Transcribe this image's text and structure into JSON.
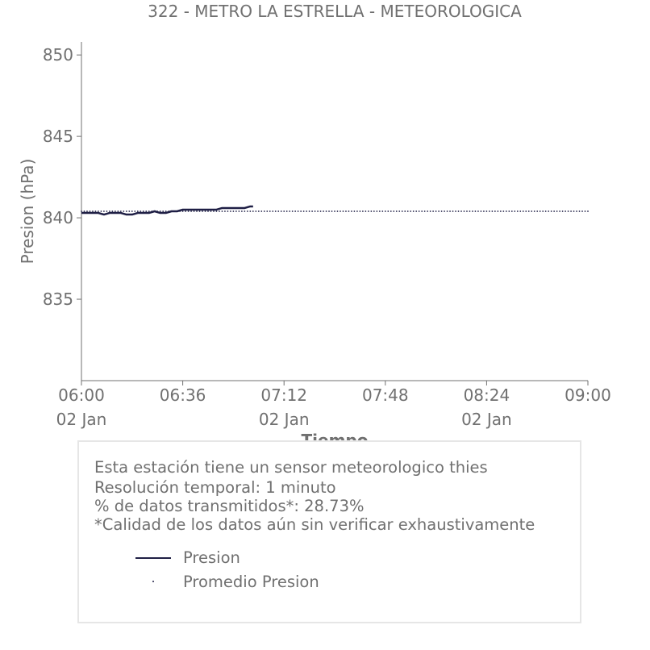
{
  "chart_data": {
    "type": "line",
    "title": "322 - METRO LA ESTRELLA - METEOROLOGICA",
    "xlabel": "Tiempo",
    "ylabel": "Presion (hPa)",
    "ylim": [
      830,
      850.8
    ],
    "xlim": [
      "06:00",
      "09:00"
    ],
    "yticks": [
      835,
      840,
      845,
      850
    ],
    "xticks": [
      {
        "time": "06:00",
        "date": "02 Jan"
      },
      {
        "time": "06:36",
        "date": ""
      },
      {
        "time": "07:12",
        "date": "02 Jan"
      },
      {
        "time": "07:48",
        "date": ""
      },
      {
        "time": "08:24",
        "date": "02 Jan"
      },
      {
        "time": "09:00",
        "date": ""
      }
    ],
    "grid": false,
    "series": [
      {
        "name": "Presion",
        "color": "#1f1f45",
        "style": "solid",
        "x": [
          "06:00",
          "06:02",
          "06:04",
          "06:06",
          "06:08",
          "06:10",
          "06:12",
          "06:14",
          "06:16",
          "06:18",
          "06:20",
          "06:22",
          "06:24",
          "06:26",
          "06:28",
          "06:30",
          "06:32",
          "06:34",
          "06:36",
          "06:38",
          "06:40",
          "06:42",
          "06:44",
          "06:46",
          "06:48",
          "06:50",
          "06:52",
          "06:54",
          "06:56",
          "06:58",
          "07:00",
          "07:01"
        ],
        "values": [
          840.3,
          840.3,
          840.3,
          840.3,
          840.2,
          840.3,
          840.3,
          840.3,
          840.2,
          840.2,
          840.3,
          840.3,
          840.3,
          840.4,
          840.3,
          840.3,
          840.4,
          840.4,
          840.5,
          840.5,
          840.5,
          840.5,
          840.5,
          840.5,
          840.5,
          840.6,
          840.6,
          840.6,
          840.6,
          840.6,
          840.7,
          840.7
        ]
      },
      {
        "name": "Promedio Presion",
        "color": "#1f1f45",
        "style": "dotted",
        "x": [
          "06:00",
          "09:00"
        ],
        "values": [
          840.4,
          840.4
        ]
      }
    ]
  },
  "info": {
    "line1": "Esta estación tiene un sensor meteorologico thies",
    "line2": "Resolución temporal: 1 minuto",
    "line3": "% de datos transmitidos*: 28.73%",
    "line4": "*Calidad de los datos aún sin verificar exhaustivamente"
  },
  "legend": [
    {
      "label": "Presion"
    },
    {
      "label": "Promedio Presion"
    }
  ]
}
